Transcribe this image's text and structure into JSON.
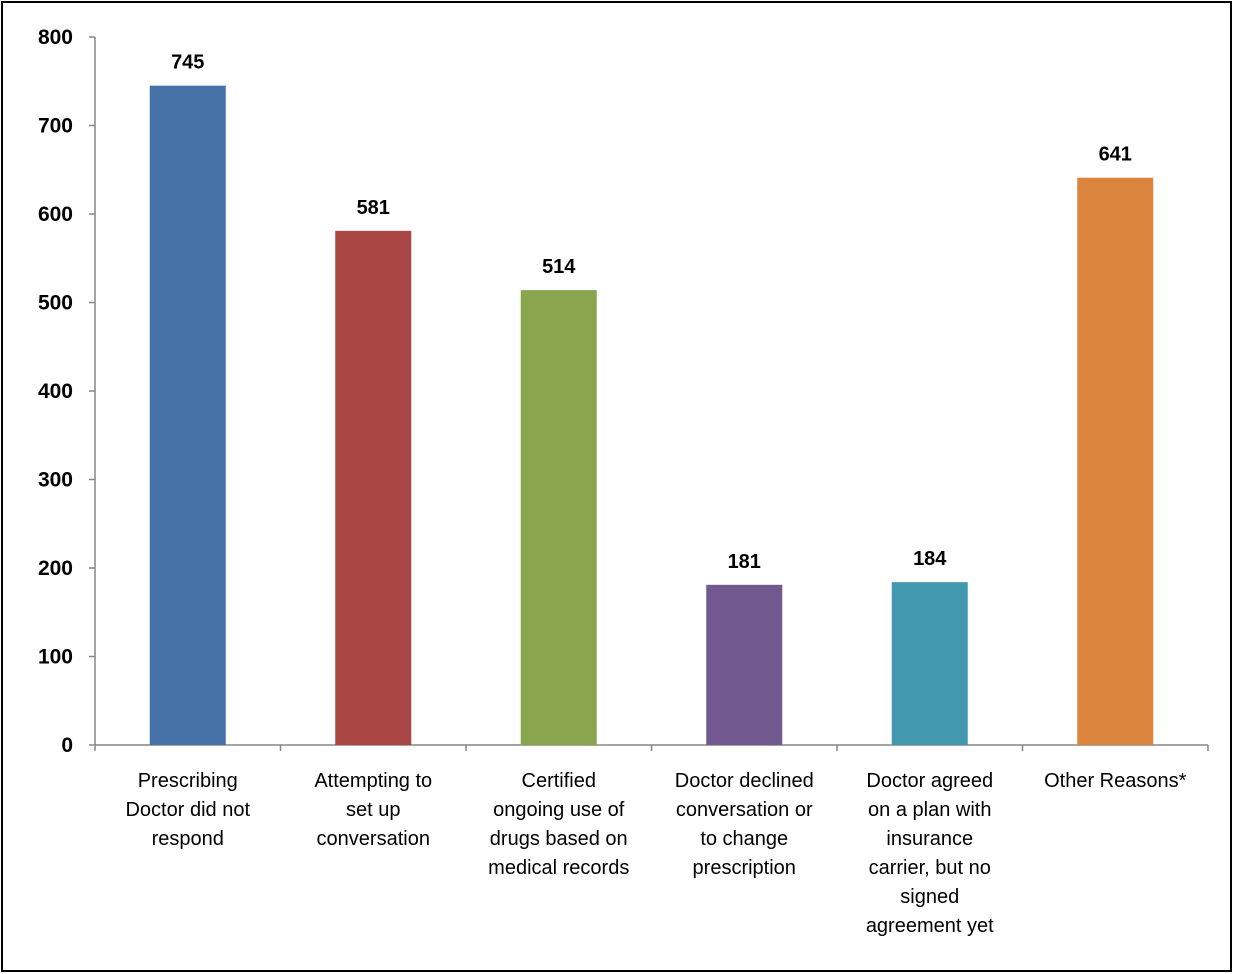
{
  "chart_data": {
    "type": "bar",
    "categories": [
      [
        "Prescribing",
        "Doctor did not",
        "respond"
      ],
      [
        "Attempting to",
        "set up",
        "conversation"
      ],
      [
        "Certified",
        "ongoing use of",
        "drugs based on",
        "medical records"
      ],
      [
        "Doctor declined",
        "conversation or",
        "to change",
        "prescription"
      ],
      [
        "Doctor agreed",
        "on a plan with",
        "insurance",
        "carrier, but no",
        "signed",
        "agreement yet"
      ],
      [
        "Other Reasons*"
      ]
    ],
    "values": [
      745,
      581,
      514,
      181,
      184,
      641
    ],
    "data_labels": [
      "745",
      "581",
      "514",
      "181",
      "184",
      "641"
    ],
    "colors": [
      "#4672A8",
      "#AA4744",
      "#89A54E",
      "#71588F",
      "#4198AF",
      "#DB843D"
    ],
    "ylim": [
      0,
      800
    ],
    "yticks": [
      0,
      100,
      200,
      300,
      400,
      500,
      600,
      700,
      800
    ],
    "ytick_labels": [
      "0",
      "100",
      "200",
      "300",
      "400",
      "500",
      "600",
      "700",
      "800"
    ],
    "title": "",
    "xlabel": "",
    "ylabel": "",
    "grid": false,
    "legend": "none"
  }
}
